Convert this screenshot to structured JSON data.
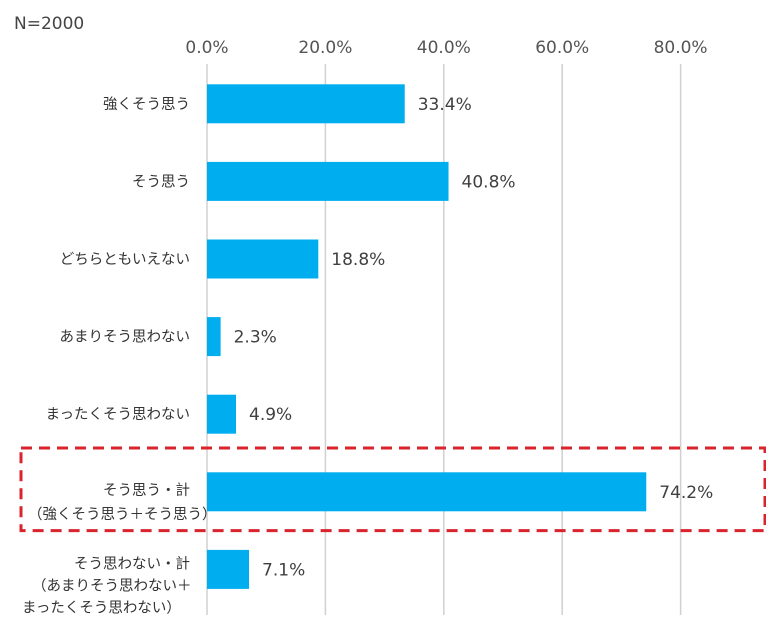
{
  "chart_data": {
    "type": "bar",
    "orientation": "horizontal",
    "note": "N=2000",
    "title": "",
    "xlabel": "",
    "ylabel": "",
    "xlim": [
      0,
      94
    ],
    "xticks": [
      "0.0%",
      "20.0%",
      "40.0%",
      "60.0%",
      "80.0%"
    ],
    "xtick_values": [
      0,
      20,
      40,
      60,
      80
    ],
    "grid": true,
    "bar_color": "#00AEEF",
    "highlight_color": "#D9232D",
    "categories": [
      {
        "lines": [
          "強くそう思う"
        ],
        "value": 33.4,
        "label": "33.4%",
        "highlight": false
      },
      {
        "lines": [
          "そう思う"
        ],
        "value": 40.8,
        "label": "40.8%",
        "highlight": false
      },
      {
        "lines": [
          "どちらともいえない"
        ],
        "value": 18.8,
        "label": "18.8%",
        "highlight": false
      },
      {
        "lines": [
          "あまりそう思わない"
        ],
        "value": 2.3,
        "label": "2.3%",
        "highlight": false
      },
      {
        "lines": [
          "まったくそう思わない"
        ],
        "value": 4.9,
        "label": "4.9%",
        "highlight": false
      },
      {
        "lines": [
          "そう思う・計",
          "（強くそう思う＋そう思う）"
        ],
        "value": 74.2,
        "label": "74.2%",
        "highlight": true
      },
      {
        "lines": [
          "そう思わない・計",
          "（あまりそう思わない＋",
          "まったくそう思わない）"
        ],
        "value": 7.1,
        "label": "7.1%",
        "highlight": false
      }
    ]
  }
}
